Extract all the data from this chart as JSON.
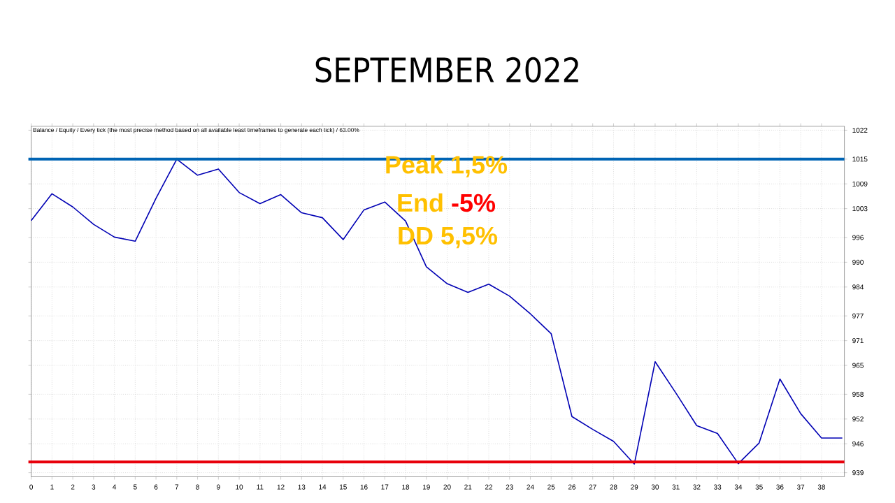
{
  "chart_data": {
    "type": "line",
    "title": "SEPTEMBER 2022",
    "subtitle": "Balance / Equity / Every tick (the most precise method based on all available least timeframes to generate each tick) / 63.00%",
    "x": [
      0,
      1,
      2,
      3,
      4,
      5,
      6,
      7,
      8,
      9,
      10,
      11,
      12,
      13,
      14,
      15,
      16,
      17,
      18,
      19,
      20,
      21,
      22,
      23,
      24,
      25,
      26,
      27,
      28,
      29,
      30,
      31,
      32,
      33,
      34,
      35,
      36,
      37,
      38,
      39
    ],
    "series": [
      {
        "color": "#0000b4",
        "values": [
          1000.1,
          1006.6,
          1003.4,
          999.2,
          996.1,
          995.1,
          1005.5,
          1015.0,
          1011.1,
          1012.6,
          1006.9,
          1004.2,
          1006.4,
          1002.0,
          1000.8,
          995.5,
          1002.7,
          1004.6,
          1000.0,
          988.9,
          984.8,
          982.7,
          984.7,
          981.8,
          977.5,
          972.7,
          952.6,
          949.5,
          946.6,
          941.1,
          965.9,
          958.3,
          950.4,
          948.5,
          941.2,
          946.2,
          961.7,
          953.3,
          947.4,
          947.4
        ]
      }
    ],
    "xlim": [
      0,
      39.1
    ],
    "ylim": [
      938,
      1023
    ],
    "xticks": [
      0,
      1,
      2,
      3,
      4,
      5,
      6,
      7,
      8,
      9,
      10,
      11,
      12,
      13,
      14,
      15,
      16,
      17,
      18,
      19,
      20,
      21,
      22,
      23,
      24,
      25,
      26,
      27,
      28,
      29,
      30,
      31,
      32,
      33,
      34,
      35,
      36,
      37,
      38
    ],
    "yticks": [
      939,
      946,
      952,
      958,
      965,
      971,
      977,
      984,
      990,
      996,
      1003,
      1009,
      1015,
      1022
    ],
    "grid": true,
    "ref_lines": [
      {
        "axis": "y",
        "value": 1015,
        "color": "#0064b4"
      },
      {
        "axis": "y",
        "value": 941.6,
        "color": "#e8000b"
      }
    ],
    "annotations": [
      "Peak 1,5%",
      "End",
      "-5%",
      "DD 5,5%"
    ]
  }
}
